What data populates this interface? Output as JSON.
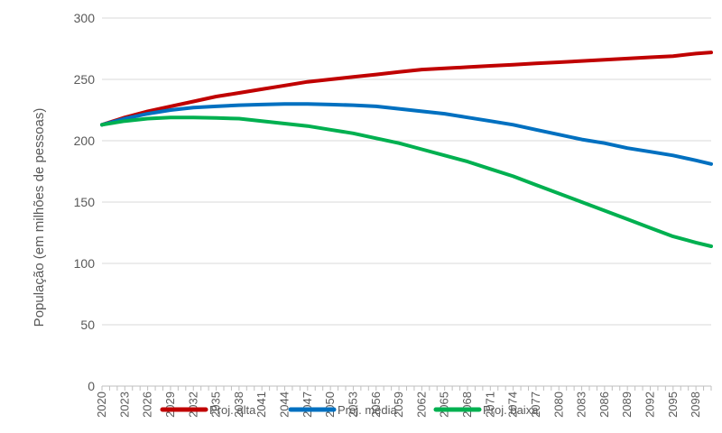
{
  "chart_data": {
    "type": "line",
    "title": "",
    "xlabel": "",
    "ylabel": "População (em milhões de pessoas)",
    "ylim": [
      0,
      300
    ],
    "yticks": [
      0,
      50,
      100,
      150,
      200,
      250,
      300
    ],
    "xlim": [
      2020,
      2100
    ],
    "xticks": [
      2020,
      2023,
      2026,
      2029,
      2032,
      2035,
      2038,
      2041,
      2044,
      2047,
      2050,
      2053,
      2056,
      2059,
      2062,
      2065,
      2068,
      2071,
      2074,
      2077,
      2080,
      2083,
      2086,
      2089,
      2092,
      2095,
      2098
    ],
    "xtick_labels": [
      "2020",
      "2023",
      "2026",
      "2029",
      "2032",
      "2035",
      "2038",
      "2041",
      "2044",
      "2047",
      "2050",
      "2053",
      "2056",
      "2059",
      "2062",
      "2065",
      "2068",
      "2071",
      "2074",
      "2077",
      "2080",
      "2083",
      "2086",
      "2089",
      "2092",
      "2095",
      "2098"
    ],
    "grid": true,
    "legend": "bottom",
    "series": [
      {
        "name": "Proj. alta",
        "color": "#c00000",
        "x": [
          2020,
          2023,
          2026,
          2029,
          2032,
          2035,
          2038,
          2041,
          2044,
          2047,
          2050,
          2053,
          2056,
          2059,
          2062,
          2065,
          2068,
          2071,
          2074,
          2077,
          2080,
          2083,
          2086,
          2089,
          2092,
          2095,
          2098,
          2100
        ],
        "values": [
          213,
          219,
          224,
          228,
          232,
          236,
          239,
          242,
          245,
          248,
          250,
          252,
          254,
          256,
          258,
          259,
          260,
          261,
          262,
          263,
          264,
          265,
          266,
          267,
          268,
          269,
          271,
          272
        ]
      },
      {
        "name": "Proj. média",
        "color": "#0070c0",
        "x": [
          2020,
          2023,
          2026,
          2029,
          2032,
          2035,
          2038,
          2041,
          2044,
          2047,
          2050,
          2053,
          2056,
          2059,
          2062,
          2065,
          2068,
          2071,
          2074,
          2077,
          2080,
          2083,
          2086,
          2089,
          2092,
          2095,
          2098,
          2100
        ],
        "values": [
          213,
          218,
          222,
          225,
          227,
          228,
          229,
          229.5,
          230,
          230,
          229.5,
          229,
          228,
          226,
          224,
          222,
          219,
          216,
          213,
          209,
          205,
          201,
          198,
          194,
          191,
          188,
          184,
          181
        ]
      },
      {
        "name": "Proj. baixa",
        "color": "#00b050",
        "x": [
          2020,
          2023,
          2026,
          2029,
          2032,
          2035,
          2038,
          2041,
          2044,
          2047,
          2050,
          2053,
          2056,
          2059,
          2062,
          2065,
          2068,
          2071,
          2074,
          2077,
          2080,
          2083,
          2086,
          2089,
          2092,
          2095,
          2098,
          2100
        ],
        "values": [
          213,
          216,
          218,
          219,
          219,
          218.5,
          218,
          216,
          214,
          212,
          209,
          206,
          202,
          198,
          193,
          188,
          183,
          177,
          171,
          164,
          157,
          150,
          143,
          136,
          129,
          122,
          117,
          114
        ]
      }
    ]
  }
}
